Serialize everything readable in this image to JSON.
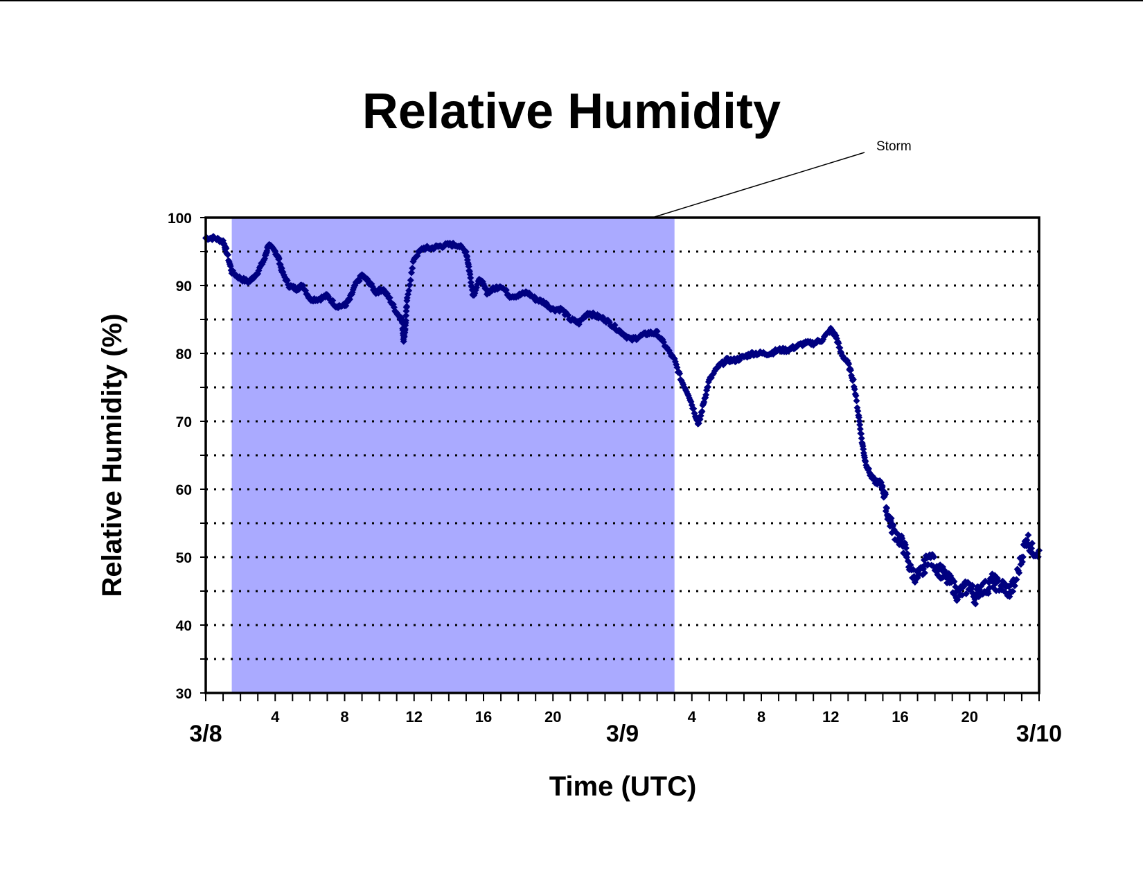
{
  "chart_data": {
    "type": "scatter",
    "title": "Relative Humidity",
    "xlabel": "Time (UTC)",
    "ylabel": "Relative Humidity (%)",
    "x_unit": "hours since 3/8 00 UTC",
    "xlim": [
      0,
      48
    ],
    "ylim": [
      30,
      100
    ],
    "y_ticks": [
      "30",
      "40",
      "50",
      "60",
      "70",
      "80",
      "90",
      "100"
    ],
    "y_ticks_values": [
      30,
      40,
      50,
      60,
      70,
      80,
      90,
      100
    ],
    "y_gridlines": [
      35,
      40,
      45,
      50,
      55,
      60,
      65,
      70,
      75,
      80,
      85,
      90,
      95
    ],
    "grid": "horizontal dotted",
    "x_hour_ticks": [
      {
        "x": 4,
        "label": "4"
      },
      {
        "x": 8,
        "label": "8"
      },
      {
        "x": 12,
        "label": "12"
      },
      {
        "x": 16,
        "label": "16"
      },
      {
        "x": 20,
        "label": "20"
      },
      {
        "x": 28,
        "label": "4"
      },
      {
        "x": 32,
        "label": "8"
      },
      {
        "x": 36,
        "label": "12"
      },
      {
        "x": 40,
        "label": "16"
      },
      {
        "x": 44,
        "label": "20"
      }
    ],
    "x_day_ticks": [
      {
        "x": 0,
        "label": "3/8"
      },
      {
        "x": 24,
        "label": "3/9"
      },
      {
        "x": 48,
        "label": "3/10"
      }
    ],
    "shaded_region": {
      "x_start": 1.5,
      "x_end": 27,
      "color": "#aaaaff"
    },
    "annotation": {
      "text": "Storm"
    },
    "marker_color": "#000080",
    "series": [
      {
        "marker": "diamond",
        "points": [
          [
            0,
            97
          ],
          [
            0.5,
            97
          ],
          [
            1,
            96.5
          ],
          [
            1.2,
            95
          ],
          [
            1.5,
            92
          ],
          [
            2,
            91
          ],
          [
            2.5,
            90.5
          ],
          [
            3,
            92
          ],
          [
            3.4,
            94
          ],
          [
            3.6,
            96
          ],
          [
            4,
            95
          ],
          [
            4.2,
            94
          ],
          [
            4.4,
            92
          ],
          [
            4.8,
            90
          ],
          [
            5.2,
            89.5
          ],
          [
            5.6,
            90
          ],
          [
            6,
            88
          ],
          [
            6.5,
            88
          ],
          [
            7,
            88.5
          ],
          [
            7.5,
            87
          ],
          [
            8,
            87
          ],
          [
            8.3,
            88
          ],
          [
            8.6,
            90
          ],
          [
            9,
            91.5
          ],
          [
            9.4,
            90.5
          ],
          [
            9.8,
            89
          ],
          [
            10.2,
            89.5
          ],
          [
            10.6,
            88
          ],
          [
            11,
            86
          ],
          [
            11.3,
            85
          ],
          [
            11.4,
            82
          ],
          [
            11.5,
            84
          ],
          [
            11.6,
            88
          ],
          [
            12,
            94
          ],
          [
            12.5,
            95.5
          ],
          [
            13,
            95.5
          ],
          [
            13.5,
            95.8
          ],
          [
            14,
            96
          ],
          [
            14.5,
            96
          ],
          [
            15,
            95
          ],
          [
            15.2,
            92
          ],
          [
            15.4,
            88.5
          ],
          [
            15.8,
            91
          ],
          [
            16.2,
            89
          ],
          [
            16.6,
            89.5
          ],
          [
            17,
            90
          ],
          [
            17.5,
            88.5
          ],
          [
            18,
            88.5
          ],
          [
            18.5,
            89
          ],
          [
            19,
            88
          ],
          [
            19.5,
            87.5
          ],
          [
            20,
            86.5
          ],
          [
            20.5,
            86.5
          ],
          [
            21,
            85
          ],
          [
            21.5,
            84.5
          ],
          [
            22,
            86
          ],
          [
            22.5,
            85.5
          ],
          [
            23,
            85
          ],
          [
            23.5,
            84
          ],
          [
            24,
            83
          ],
          [
            24.5,
            82
          ],
          [
            25,
            82.5
          ],
          [
            25.5,
            83
          ],
          [
            26,
            83
          ],
          [
            26.5,
            81
          ],
          [
            27,
            79
          ],
          [
            27.4,
            76
          ],
          [
            27.8,
            74
          ],
          [
            28.2,
            71
          ],
          [
            28.4,
            69.5
          ],
          [
            28.7,
            73
          ],
          [
            29,
            76
          ],
          [
            29.5,
            78
          ],
          [
            30,
            79
          ],
          [
            30.5,
            79
          ],
          [
            31,
            79.5
          ],
          [
            31.5,
            80
          ],
          [
            32,
            80
          ],
          [
            32.5,
            80
          ],
          [
            33,
            80.5
          ],
          [
            33.5,
            80.5
          ],
          [
            34,
            81
          ],
          [
            34.5,
            81.5
          ],
          [
            35,
            81.5
          ],
          [
            35.5,
            82
          ],
          [
            36,
            83.5
          ],
          [
            36.3,
            82.5
          ],
          [
            36.6,
            80
          ],
          [
            37,
            78.5
          ],
          [
            37.3,
            76
          ],
          [
            37.6,
            71
          ],
          [
            37.8,
            67
          ],
          [
            38,
            64
          ],
          [
            38.3,
            62
          ],
          [
            38.6,
            61
          ],
          [
            38.9,
            61
          ],
          [
            39.1,
            59
          ],
          [
            39.3,
            56
          ],
          [
            39.6,
            54
          ],
          [
            40,
            52.5
          ],
          [
            40.3,
            51
          ],
          [
            40.6,
            48
          ],
          [
            41,
            47
          ],
          [
            41.3,
            48
          ],
          [
            41.6,
            50
          ],
          [
            42,
            49
          ],
          [
            42.3,
            48
          ],
          [
            42.6,
            47
          ],
          [
            43,
            46
          ],
          [
            43.3,
            44.5
          ],
          [
            43.6,
            45
          ],
          [
            44,
            46
          ],
          [
            44.3,
            44
          ],
          [
            44.6,
            45.5
          ],
          [
            45,
            45.5
          ],
          [
            45.3,
            46.5
          ],
          [
            45.6,
            46
          ],
          [
            46,
            45.5
          ],
          [
            46.3,
            45
          ],
          [
            46.6,
            46
          ],
          [
            47,
            50
          ],
          [
            47.3,
            53
          ],
          [
            47.6,
            51
          ],
          [
            48,
            51
          ]
        ]
      }
    ]
  }
}
